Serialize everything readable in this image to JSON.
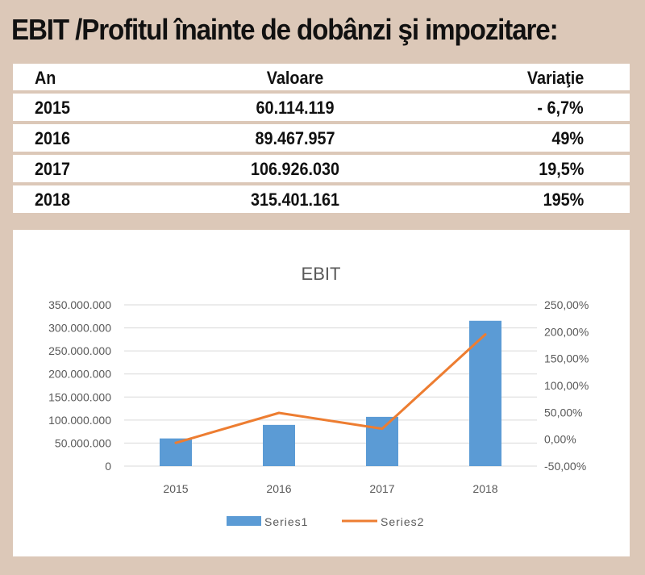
{
  "page_title": "EBIT /Profitul înainte de dobânzi şi impozitare:",
  "table": {
    "headers": [
      "An",
      "Valoare",
      "Variaţie"
    ],
    "rows": [
      [
        "2015",
        "60.114.119",
        "- 6,7%"
      ],
      [
        "2016",
        "89.467.957",
        "49%"
      ],
      [
        "2017",
        "106.926.030",
        "19,5%"
      ],
      [
        "2018",
        "315.401.161",
        "195%"
      ]
    ]
  },
  "colors": {
    "background": "#dcc8b8",
    "bar": "#5b9bd5",
    "line": "#ed7d31",
    "grid": "#d9d9d9",
    "text": "#595959"
  },
  "chart_data": {
    "type": "bar",
    "title": "EBIT",
    "categories": [
      "2015",
      "2016",
      "2017",
      "2018"
    ],
    "series": [
      {
        "name": "Series1",
        "type": "bar",
        "axis": "left",
        "values": [
          60114119,
          89467957,
          106926030,
          315401161
        ]
      },
      {
        "name": "Series2",
        "type": "line",
        "axis": "right",
        "values": [
          -0.067,
          0.49,
          0.195,
          1.95
        ]
      }
    ],
    "y_left": {
      "min": 0,
      "max": 350000000,
      "step": 50000000,
      "tick_labels": [
        "0",
        "50.000.000",
        "100.000.000",
        "150.000.000",
        "200.000.000",
        "250.000.000",
        "300.000.000",
        "350.000.000"
      ]
    },
    "y_right": {
      "min": -0.5,
      "max": 2.5,
      "step": 0.5,
      "tick_labels": [
        "-50,00%",
        "0,00%",
        "50,00%",
        "100,00%",
        "150,00%",
        "200,00%",
        "250,00%"
      ]
    },
    "grid": true,
    "legend_position": "bottom"
  }
}
